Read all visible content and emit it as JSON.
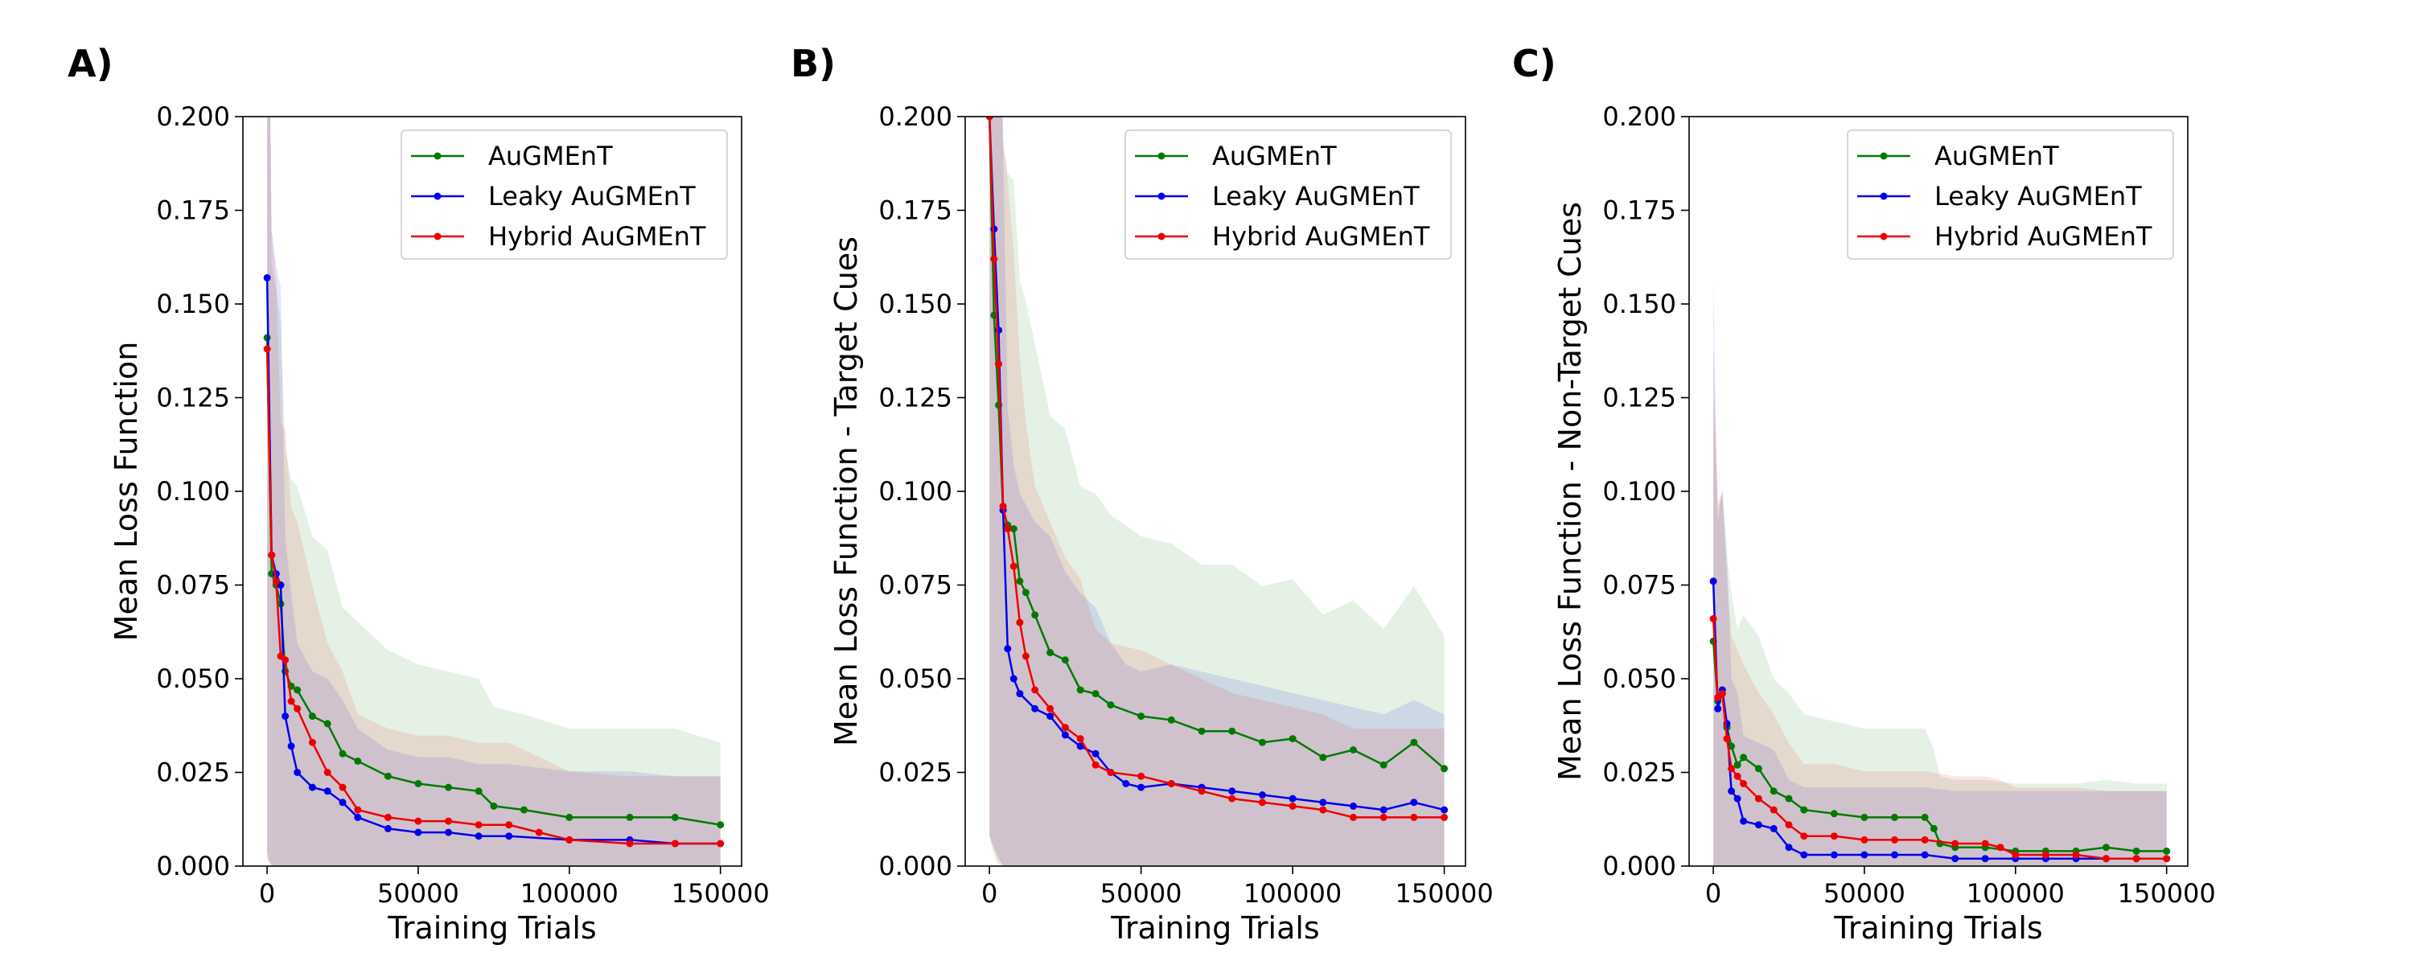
{
  "colors": {
    "AuGMEnT": "#007a00",
    "Leaky AuGMEnT": "#0000ee",
    "Hybrid AuGMEnT": "#ee0000"
  },
  "chart_data": [
    {
      "type": "line",
      "panel": "A)",
      "xlabel": "Training Trials",
      "ylabel": "Mean Loss Function",
      "xlim": [
        -8000,
        157000
      ],
      "ylim": [
        0,
        0.2
      ],
      "xticks": [
        0,
        50000,
        100000,
        150000
      ],
      "yticks": [
        0.0,
        0.025,
        0.05,
        0.075,
        0.1,
        0.125,
        0.15,
        0.175,
        0.2
      ],
      "xtick_labels": [
        "0",
        "50000",
        "100000",
        "150000"
      ],
      "ytick_labels": [
        "0.000",
        "0.025",
        "0.050",
        "0.075",
        "0.100",
        "0.125",
        "0.150",
        "0.175",
        "0.200"
      ],
      "legend_position": "top-right",
      "series": [
        {
          "name": "AuGMEnT",
          "x": [
            0,
            1500,
            3000,
            4500,
            6000,
            8000,
            10000,
            15000,
            20000,
            25000,
            30000,
            40000,
            50000,
            60000,
            70000,
            75000,
            85000,
            100000,
            120000,
            135000,
            150000
          ],
          "y": [
            0.141,
            0.078,
            0.075,
            0.07,
            0.052,
            0.048,
            0.047,
            0.04,
            0.038,
            0.03,
            0.028,
            0.024,
            0.022,
            0.021,
            0.02,
            0.016,
            0.015,
            0.013,
            0.013,
            0.013,
            0.011
          ]
        },
        {
          "name": "Leaky AuGMEnT",
          "x": [
            0,
            1500,
            3000,
            4500,
            6000,
            8000,
            10000,
            15000,
            20000,
            25000,
            30000,
            40000,
            50000,
            60000,
            70000,
            80000,
            100000,
            120000,
            135000,
            150000
          ],
          "y": [
            0.157,
            0.083,
            0.078,
            0.075,
            0.04,
            0.032,
            0.025,
            0.021,
            0.02,
            0.017,
            0.013,
            0.01,
            0.009,
            0.009,
            0.008,
            0.008,
            0.007,
            0.007,
            0.006,
            0.006
          ]
        },
        {
          "name": "Hybrid AuGMEnT",
          "x": [
            0,
            1500,
            3000,
            4500,
            6000,
            8000,
            10000,
            15000,
            20000,
            25000,
            30000,
            40000,
            50000,
            60000,
            70000,
            80000,
            90000,
            100000,
            120000,
            135000,
            150000
          ],
          "y": [
            0.138,
            0.083,
            0.076,
            0.056,
            0.055,
            0.044,
            0.042,
            0.033,
            0.025,
            0.021,
            0.015,
            0.013,
            0.012,
            0.012,
            0.011,
            0.011,
            0.009,
            0.007,
            0.006,
            0.006,
            0.006
          ]
        }
      ]
    },
    {
      "type": "line",
      "panel": "B)",
      "xlabel": "Training Trials",
      "ylabel": "Mean Loss Function - Target Cues",
      "xlim": [
        -8000,
        157000
      ],
      "ylim": [
        0,
        0.2
      ],
      "xticks": [
        0,
        50000,
        100000,
        150000
      ],
      "yticks": [
        0.0,
        0.025,
        0.05,
        0.075,
        0.1,
        0.125,
        0.15,
        0.175,
        0.2
      ],
      "xtick_labels": [
        "0",
        "50000",
        "100000",
        "150000"
      ],
      "ytick_labels": [
        "0.000",
        "0.025",
        "0.050",
        "0.075",
        "0.100",
        "0.125",
        "0.150",
        "0.175",
        "0.200"
      ],
      "legend_position": "top-right",
      "series": [
        {
          "name": "AuGMEnT",
          "x": [
            0,
            1500,
            3000,
            4500,
            6000,
            8000,
            10000,
            12000,
            15000,
            20000,
            25000,
            30000,
            35000,
            40000,
            50000,
            60000,
            70000,
            80000,
            90000,
            100000,
            110000,
            120000,
            130000,
            140000,
            150000
          ],
          "y": [
            0.2,
            0.147,
            0.123,
            0.095,
            0.091,
            0.09,
            0.076,
            0.073,
            0.067,
            0.057,
            0.055,
            0.047,
            0.046,
            0.043,
            0.04,
            0.039,
            0.036,
            0.036,
            0.033,
            0.034,
            0.029,
            0.031,
            0.027,
            0.033,
            0.026
          ]
        },
        {
          "name": "Leaky AuGMEnT",
          "x": [
            0,
            1500,
            3000,
            4500,
            6000,
            8000,
            10000,
            15000,
            20000,
            25000,
            30000,
            35000,
            40000,
            45000,
            50000,
            60000,
            70000,
            80000,
            90000,
            100000,
            110000,
            120000,
            130000,
            140000,
            150000
          ],
          "y": [
            0.2,
            0.17,
            0.143,
            0.095,
            0.058,
            0.05,
            0.046,
            0.042,
            0.04,
            0.035,
            0.032,
            0.03,
            0.025,
            0.022,
            0.021,
            0.022,
            0.021,
            0.02,
            0.019,
            0.018,
            0.017,
            0.016,
            0.015,
            0.017,
            0.015
          ]
        },
        {
          "name": "Hybrid AuGMEnT",
          "x": [
            0,
            1500,
            3000,
            4500,
            6000,
            8000,
            10000,
            12000,
            15000,
            20000,
            25000,
            30000,
            35000,
            40000,
            50000,
            60000,
            70000,
            80000,
            90000,
            100000,
            110000,
            120000,
            130000,
            140000,
            150000
          ],
          "y": [
            0.2,
            0.162,
            0.134,
            0.096,
            0.09,
            0.08,
            0.065,
            0.056,
            0.047,
            0.042,
            0.037,
            0.034,
            0.027,
            0.025,
            0.024,
            0.022,
            0.02,
            0.018,
            0.017,
            0.016,
            0.015,
            0.013,
            0.013,
            0.013,
            0.013
          ]
        }
      ]
    },
    {
      "type": "line",
      "panel": "C)",
      "xlabel": "Training Trials",
      "ylabel": "Mean Loss Function - Non-Target Cues",
      "xlim": [
        -8000,
        157000
      ],
      "ylim": [
        0,
        0.2
      ],
      "xticks": [
        0,
        50000,
        100000,
        150000
      ],
      "yticks": [
        0.0,
        0.025,
        0.05,
        0.075,
        0.1,
        0.125,
        0.15,
        0.175,
        0.2
      ],
      "xtick_labels": [
        "0",
        "50000",
        "100000",
        "150000"
      ],
      "ytick_labels": [
        "0.000",
        "0.025",
        "0.050",
        "0.075",
        "0.100",
        "0.125",
        "0.150",
        "0.175",
        "0.200"
      ],
      "legend_position": "top-right",
      "series": [
        {
          "name": "AuGMEnT",
          "x": [
            0,
            1500,
            3000,
            4500,
            6000,
            8000,
            10000,
            15000,
            20000,
            25000,
            30000,
            40000,
            50000,
            60000,
            70000,
            73000,
            75000,
            80000,
            90000,
            100000,
            110000,
            120000,
            130000,
            140000,
            150000
          ],
          "y": [
            0.06,
            0.044,
            0.046,
            0.037,
            0.032,
            0.027,
            0.029,
            0.026,
            0.02,
            0.018,
            0.015,
            0.014,
            0.013,
            0.013,
            0.013,
            0.01,
            0.006,
            0.005,
            0.005,
            0.004,
            0.004,
            0.004,
            0.005,
            0.004,
            0.004
          ]
        },
        {
          "name": "Leaky AuGMEnT",
          "x": [
            0,
            1500,
            3000,
            4500,
            6000,
            8000,
            10000,
            15000,
            20000,
            25000,
            30000,
            40000,
            50000,
            60000,
            70000,
            80000,
            90000,
            100000,
            110000,
            120000,
            130000,
            140000,
            150000
          ],
          "y": [
            0.076,
            0.042,
            0.047,
            0.038,
            0.02,
            0.018,
            0.012,
            0.011,
            0.01,
            0.005,
            0.003,
            0.003,
            0.003,
            0.003,
            0.003,
            0.002,
            0.002,
            0.002,
            0.002,
            0.002,
            0.002,
            0.002,
            0.002
          ]
        },
        {
          "name": "Hybrid AuGMEnT",
          "x": [
            0,
            1500,
            3000,
            4500,
            6000,
            8000,
            10000,
            15000,
            20000,
            25000,
            30000,
            40000,
            50000,
            60000,
            70000,
            80000,
            90000,
            95000,
            100000,
            110000,
            120000,
            130000,
            140000,
            150000
          ],
          "y": [
            0.066,
            0.045,
            0.046,
            0.034,
            0.026,
            0.024,
            0.022,
            0.018,
            0.015,
            0.011,
            0.008,
            0.008,
            0.007,
            0.007,
            0.007,
            0.006,
            0.006,
            0.005,
            0.003,
            0.003,
            0.003,
            0.002,
            0.002,
            0.002
          ]
        }
      ]
    }
  ]
}
